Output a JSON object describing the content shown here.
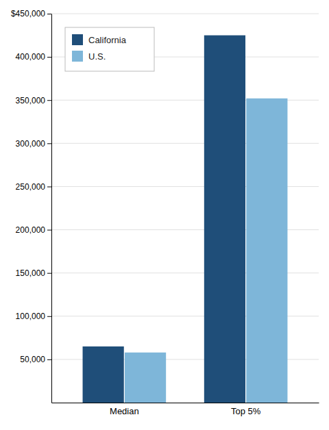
{
  "chart_data": {
    "type": "bar",
    "categories": [
      "Median",
      "Top 5%"
    ],
    "series": [
      {
        "name": "California",
        "color": "#1F4E79",
        "values": [
          65000,
          425000
        ]
      },
      {
        "name": "U.S.",
        "color": "#7EB6D9",
        "values": [
          58000,
          352000
        ]
      }
    ],
    "ylim": [
      0,
      450000
    ],
    "yticks": [
      {
        "value": 50000,
        "label": "50,000"
      },
      {
        "value": 100000,
        "label": "100,000"
      },
      {
        "value": 150000,
        "label": "150,000"
      },
      {
        "value": 200000,
        "label": "200,000"
      },
      {
        "value": 250000,
        "label": "250,000"
      },
      {
        "value": 300000,
        "label": "300,000"
      },
      {
        "value": 350000,
        "label": "350,000"
      },
      {
        "value": 400000,
        "label": "400,000"
      },
      {
        "value": 450000,
        "label": "$450,000"
      }
    ],
    "grid": true,
    "legend": "upper-left"
  }
}
